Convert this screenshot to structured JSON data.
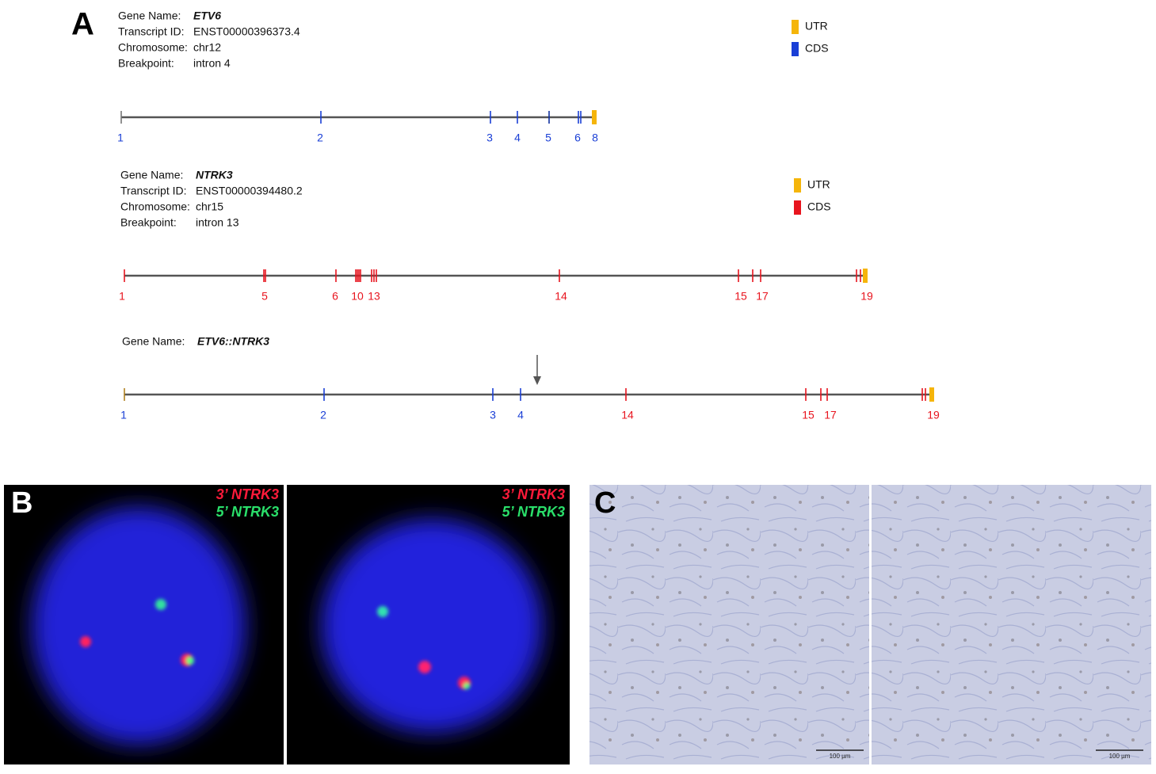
{
  "panel_a": {
    "label": "A",
    "etv6": {
      "fields": [
        [
          "Gene Name:",
          "ETV6"
        ],
        [
          "Transcript ID:",
          "ENST00000396373.4"
        ],
        [
          "Chromosome:",
          "chr12"
        ],
        [
          "Breakpoint:",
          "intron 4"
        ]
      ],
      "legend": [
        "UTR",
        "CDS"
      ],
      "exon_labels": [
        "1",
        "2",
        "3",
        "4",
        "5",
        "6",
        "8"
      ]
    },
    "ntrk3": {
      "fields": [
        [
          "Gene Name:",
          "NTRK3"
        ],
        [
          "Transcript ID:",
          "ENST00000394480.2"
        ],
        [
          "Chromosome:",
          "chr15"
        ],
        [
          "Breakpoint:",
          "intron 13"
        ]
      ],
      "legend": [
        "UTR",
        "CDS"
      ],
      "exon_labels": [
        "1",
        "5",
        "6",
        "10",
        "13",
        "14",
        "15",
        "17",
        "19"
      ]
    },
    "fusion": {
      "fields": [
        [
          "Gene Name:",
          "ETV6::NTRK3"
        ]
      ],
      "exon_labels": [
        "1",
        "2",
        "3",
        "4",
        "14",
        "15",
        "17",
        "19"
      ]
    }
  },
  "panel_b": {
    "label": "B",
    "images": [
      {
        "probe_3": "3’ NTRK3",
        "probe_5": "5’ NTRK3"
      },
      {
        "probe_3": "3’ NTRK3",
        "probe_5": "5’ NTRK3"
      }
    ]
  },
  "panel_c": {
    "label": "C",
    "images": [
      {
        "scale_bar": "100 µm"
      },
      {
        "scale_bar": "100 µm"
      }
    ]
  }
}
